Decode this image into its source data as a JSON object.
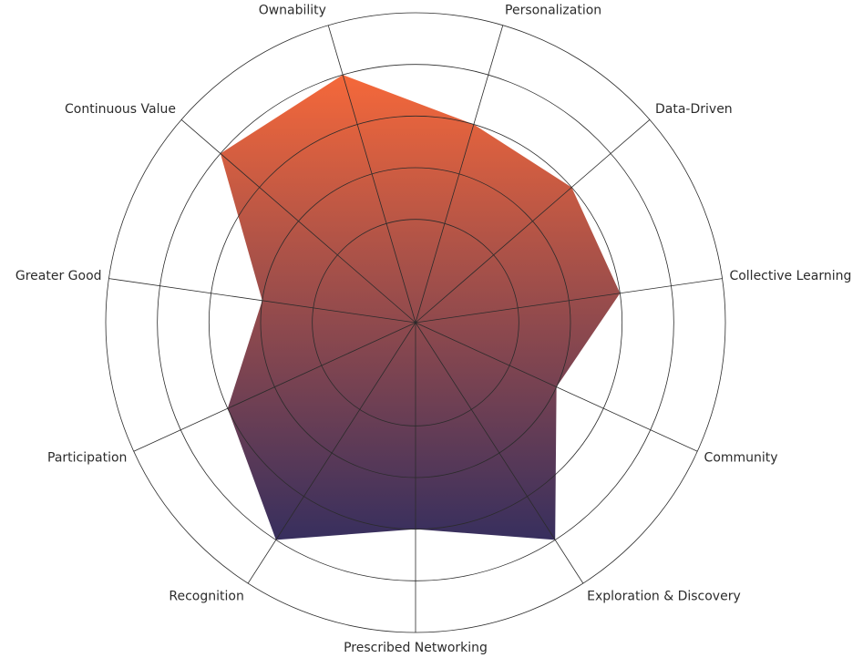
{
  "chart_data": {
    "type": "radar",
    "categories": [
      "Ownability",
      "Personalization",
      "Data-Driven",
      "Collective Learning",
      "Community",
      "Exploration & Discovery",
      "Prescribed Networking",
      "Recognition",
      "Participation",
      "Greater Good",
      "Continuous Value"
    ],
    "values": [
      5,
      4,
      4,
      4,
      3,
      5,
      4,
      5,
      4,
      3,
      5
    ],
    "ylim": [
      0,
      6
    ],
    "yticks": [
      2,
      3,
      4,
      5,
      6
    ],
    "grid": true,
    "colors": [
      "#f5683a",
      "#372f5e"
    ]
  }
}
